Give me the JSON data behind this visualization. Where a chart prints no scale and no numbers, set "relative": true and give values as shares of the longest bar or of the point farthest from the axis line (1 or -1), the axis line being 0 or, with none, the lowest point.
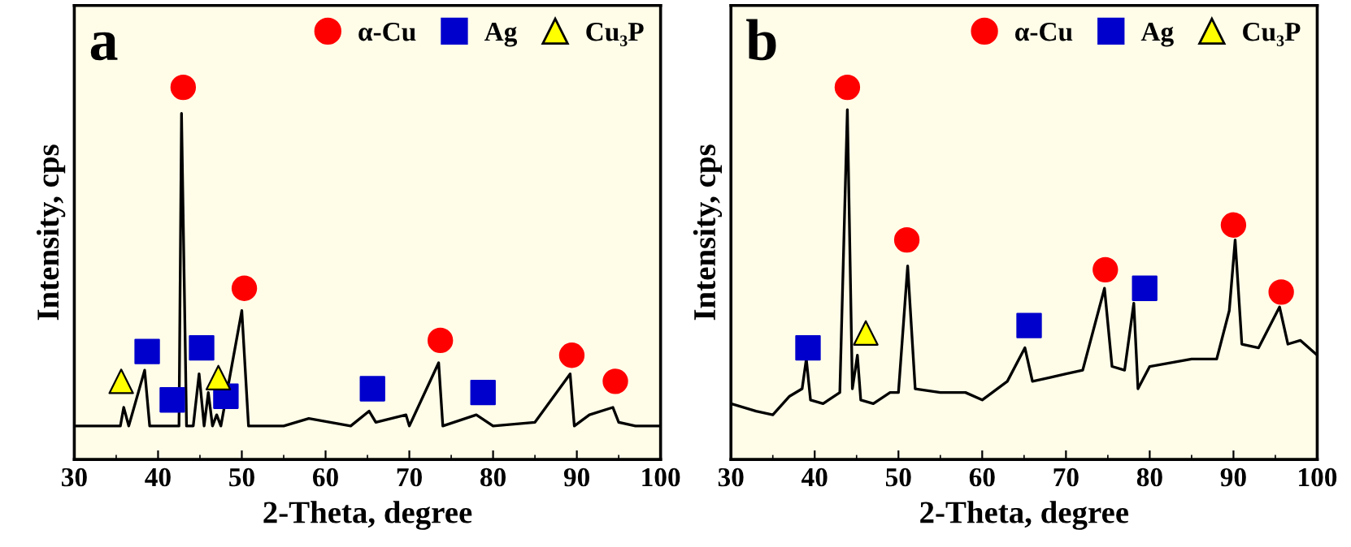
{
  "chart_data": [
    {
      "type": "line",
      "title": "a",
      "xlabel": "2-Theta, degree",
      "ylabel": "Intensity, cps",
      "relative": true,
      "xlim": [
        30,
        100
      ],
      "xticks": [
        30,
        40,
        50,
        60,
        70,
        80,
        90,
        100
      ],
      "tick_labels": "x",
      "legend": "top right",
      "grid": false,
      "series": [
        {
          "color": "#000000",
          "marker": "none",
          "x": [
            30,
            35.5,
            35.9,
            36.5,
            38.4,
            39,
            41,
            42.5,
            42.8,
            43.4,
            44.2,
            44.9,
            45.5,
            46.0,
            46.5,
            47,
            47.5,
            50.0,
            50.8,
            55,
            58,
            63,
            65.2,
            66,
            69.6,
            70,
            73.5,
            74,
            78,
            80,
            85,
            89.2,
            89.7,
            91.5,
            94.3,
            95,
            97,
            100
          ],
          "values": [
            0.09,
            0.09,
            0.14,
            0.09,
            0.24,
            0.09,
            0.09,
            0.09,
            0.93,
            0.09,
            0.09,
            0.23,
            0.09,
            0.18,
            0.09,
            0.12,
            0.09,
            0.4,
            0.09,
            0.09,
            0.11,
            0.09,
            0.13,
            0.1,
            0.12,
            0.09,
            0.26,
            0.09,
            0.12,
            0.09,
            0.1,
            0.23,
            0.09,
            0.12,
            0.14,
            0.1,
            0.09,
            0.09
          ]
        },
        {
          "type": "scatter",
          "name": "α-Cu",
          "color": "#ff0000",
          "marker": "circle",
          "x": [
            43.0,
            50.3,
            73.7,
            89.4,
            94.6
          ],
          "values": [
            1.0,
            0.46,
            0.32,
            0.28,
            0.21
          ]
        },
        {
          "type": "scatter",
          "name": "Ag",
          "color": "#0000cc",
          "marker": "square",
          "x": [
            38.7,
            41.7,
            45.2,
            48.1,
            65.6,
            78.8
          ],
          "values": [
            0.29,
            0.16,
            0.3,
            0.17,
            0.19,
            0.18
          ]
        },
        {
          "type": "scatter",
          "name": "Cu₃P",
          "color": "#ffff00",
          "marker": "triangle",
          "x": [
            35.6,
            47.2
          ],
          "values": [
            0.21,
            0.22
          ]
        }
      ]
    },
    {
      "type": "line",
      "title": "b",
      "xlabel": "2-Theta, degree",
      "ylabel": "Intensity, cps",
      "relative": true,
      "xlim": [
        30,
        100
      ],
      "xticks": [
        30,
        40,
        50,
        60,
        70,
        80,
        90,
        100
      ],
      "tick_labels": "x",
      "legend": "top right",
      "grid": false,
      "series": [
        {
          "color": "#000000",
          "marker": "none",
          "x": [
            30,
            33,
            35,
            37,
            38.5,
            39.0,
            39.5,
            41,
            43,
            43.9,
            44.5,
            45.1,
            45.5,
            47,
            49,
            50,
            51.1,
            52,
            55,
            58,
            60,
            63,
            65.1,
            66,
            68,
            70,
            72,
            74.6,
            75.5,
            77,
            78.1,
            78.6,
            80,
            85,
            88,
            89.5,
            90.2,
            91,
            93,
            95.5,
            96.5,
            98,
            100
          ],
          "values": [
            0.15,
            0.13,
            0.12,
            0.17,
            0.19,
            0.27,
            0.16,
            0.15,
            0.18,
            0.94,
            0.19,
            0.28,
            0.16,
            0.15,
            0.18,
            0.18,
            0.52,
            0.19,
            0.18,
            0.18,
            0.16,
            0.21,
            0.3,
            0.21,
            0.22,
            0.23,
            0.24,
            0.46,
            0.25,
            0.24,
            0.42,
            0.19,
            0.25,
            0.27,
            0.27,
            0.4,
            0.59,
            0.31,
            0.3,
            0.41,
            0.31,
            0.32,
            0.28
          ]
        },
        {
          "type": "scatter",
          "name": "α-Cu",
          "color": "#ff0000",
          "marker": "circle",
          "x": [
            43.9,
            51.0,
            74.7,
            90.0,
            95.7
          ],
          "values": [
            1.0,
            0.59,
            0.51,
            0.63,
            0.45
          ]
        },
        {
          "type": "scatter",
          "name": "Ag",
          "color": "#0000cc",
          "marker": "square",
          "x": [
            39.2,
            65.6,
            79.4
          ],
          "values": [
            0.3,
            0.36,
            0.46
          ]
        },
        {
          "type": "scatter",
          "name": "Cu₃P",
          "color": "#ffff00",
          "marker": "triangle",
          "x": [
            46.1
          ],
          "values": [
            0.34
          ]
        }
      ]
    }
  ]
}
